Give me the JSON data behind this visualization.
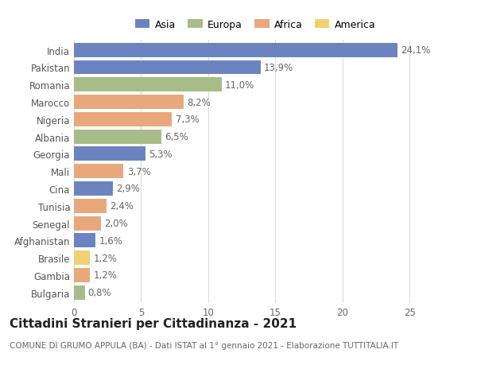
{
  "categories": [
    "India",
    "Pakistan",
    "Romania",
    "Marocco",
    "Nigeria",
    "Albania",
    "Georgia",
    "Mali",
    "Cina",
    "Tunisia",
    "Senegal",
    "Afghanistan",
    "Brasile",
    "Gambia",
    "Bulgaria"
  ],
  "values": [
    24.1,
    13.9,
    11.0,
    8.2,
    7.3,
    6.5,
    5.3,
    3.7,
    2.9,
    2.4,
    2.0,
    1.6,
    1.2,
    1.2,
    0.8
  ],
  "labels": [
    "24,1%",
    "13,9%",
    "11,0%",
    "8,2%",
    "7,3%",
    "6,5%",
    "5,3%",
    "3,7%",
    "2,9%",
    "2,4%",
    "2,0%",
    "1,6%",
    "1,2%",
    "1,2%",
    "0,8%"
  ],
  "colors": [
    "#6b84c0",
    "#6b84c0",
    "#a8bc8a",
    "#e8a87c",
    "#e8a87c",
    "#a8bc8a",
    "#6b84c0",
    "#e8a87c",
    "#6b84c0",
    "#e8a87c",
    "#e8a87c",
    "#6b84c0",
    "#f0d070",
    "#e8a87c",
    "#a8bc8a"
  ],
  "legend": [
    {
      "label": "Asia",
      "color": "#6b84c0"
    },
    {
      "label": "Europa",
      "color": "#a8bc8a"
    },
    {
      "label": "Africa",
      "color": "#e8a87c"
    },
    {
      "label": "America",
      "color": "#f0d070"
    }
  ],
  "title": "Cittadini Stranieri per Cittadinanza - 2021",
  "subtitle": "COMUNE DI GRUMO APPULA (BA) - Dati ISTAT al 1° gennaio 2021 - Elaborazione TUTTITALIA.IT",
  "xlim": [
    0,
    27
  ],
  "xticks": [
    0,
    5,
    10,
    15,
    20,
    25
  ],
  "background_color": "#ffffff",
  "grid_color": "#dddddd",
  "bar_height": 0.82,
  "label_fontsize": 8.5,
  "tick_fontsize": 8.5,
  "title_fontsize": 11,
  "subtitle_fontsize": 7.5
}
